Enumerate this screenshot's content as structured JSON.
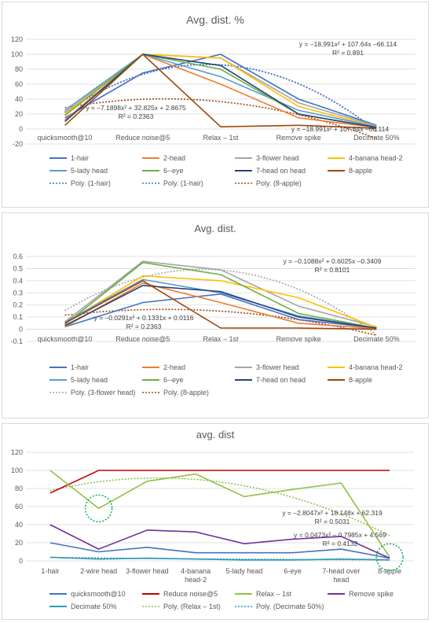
{
  "chart_data": [
    {
      "type": "line",
      "title": "Avg. dist. %",
      "categories": [
        "quicksmooth@10",
        "Reduce noise@5",
        "Relax – 1st",
        "Remove spike",
        "Decimate 50%"
      ],
      "ylim": [
        -20,
        120
      ],
      "yticks": [
        "-20",
        "0",
        "20",
        "40",
        "60",
        "80",
        "100",
        "120"
      ],
      "grid": true,
      "legend_position": "bottom",
      "series": [
        {
          "name": "1-hair",
          "color": "#4472c4",
          "values": [
            15,
            75,
            100,
            40,
            5
          ]
        },
        {
          "name": "2-head",
          "color": "#ed7d31",
          "values": [
            12,
            100,
            60,
            15,
            2
          ]
        },
        {
          "name": "3-flower head",
          "color": "#a5a5a5",
          "values": [
            22,
            100,
            95,
            35,
            4
          ]
        },
        {
          "name": "4-banana head-2",
          "color": "#ffc000",
          "values": [
            20,
            100,
            95,
            30,
            3
          ]
        },
        {
          "name": "5-lady head",
          "color": "#5b9bd5",
          "values": [
            25,
            100,
            70,
            25,
            3
          ]
        },
        {
          "name": "6--eye",
          "color": "#70ad47",
          "values": [
            18,
            100,
            80,
            20,
            2
          ]
        },
        {
          "name": "7-head on head",
          "color": "#264478",
          "values": [
            10,
            100,
            85,
            20,
            2
          ]
        },
        {
          "name": "8-apple",
          "color": "#9e480e",
          "values": [
            5,
            100,
            3,
            5,
            1
          ]
        }
      ],
      "trendlines": [
        {
          "name": "Poly. (1-hair)",
          "color": "#4472c4",
          "coef": [
            -18.991,
            107.64,
            -66.114
          ]
        },
        {
          "name": "Poly. (1-hair)",
          "color": "#4472c4",
          "coef": [
            -18.991,
            107.64,
            -66.114
          ]
        },
        {
          "name": "Poly. (8-apple)",
          "color": "#9e480e",
          "coef": [
            -7.1898,
            32.825,
            2.8675
          ]
        }
      ],
      "annotations": [
        {
          "equation": "y = –18.991x² + 107.64x –66.114",
          "r2": "R² = 0.891"
        },
        {
          "equation": "y = –7.1898x² + 32.825x + 2.8675",
          "r2": "R² = 0.2363"
        },
        {
          "equation": "y = –18.991x² + 107.64x –66.114",
          "r2": ""
        }
      ]
    },
    {
      "type": "line",
      "title": "Avg. dist.",
      "categories": [
        "quicksmooth@10",
        "Reduce noise@5",
        "Relax – 1st",
        "Remove spike",
        "Decimate 50%"
      ],
      "ylim": [
        -0.1,
        0.6
      ],
      "yticks": [
        "-0.1",
        "0",
        "0.1",
        "0.2",
        "0.3",
        "0.4",
        "0.5",
        "0.6"
      ],
      "grid": true,
      "legend_position": "bottom",
      "series": [
        {
          "name": "1-hair",
          "color": "#4472c4",
          "values": [
            0.02,
            0.22,
            0.29,
            0.08,
            0.01
          ]
        },
        {
          "name": "2-head",
          "color": "#ed7d31",
          "values": [
            0.02,
            0.38,
            0.22,
            0.05,
            0.005
          ]
        },
        {
          "name": "3-flower head",
          "color": "#a5a5a5",
          "values": [
            0.06,
            0.56,
            0.49,
            0.19,
            0.02
          ]
        },
        {
          "name": "4-banana head-2",
          "color": "#ffc000",
          "values": [
            0.05,
            0.44,
            0.4,
            0.26,
            0.015
          ]
        },
        {
          "name": "5-lady head",
          "color": "#5b9bd5",
          "values": [
            0.06,
            0.41,
            0.3,
            0.11,
            0.01
          ]
        },
        {
          "name": "6--eye",
          "color": "#70ad47",
          "values": [
            0.04,
            0.55,
            0.45,
            0.13,
            0.01
          ]
        },
        {
          "name": "7-head on head",
          "color": "#264478",
          "values": [
            0.03,
            0.36,
            0.31,
            0.1,
            0.01
          ]
        },
        {
          "name": "8-apple",
          "color": "#9e480e",
          "values": [
            0.05,
            0.4,
            0.01,
            0.01,
            0.0
          ]
        }
      ],
      "trendlines": [
        {
          "name": "Poly. (3-flower head)",
          "color": "#a5a5a5",
          "coef": [
            -0.1088,
            0.6025,
            -0.3409
          ]
        },
        {
          "name": "Poly. (8-apple)",
          "color": "#9e480e",
          "coef": [
            -0.0291,
            0.1331,
            0.0116
          ]
        }
      ],
      "annotations": [
        {
          "equation": "y = –0.1088x² + 0.6025x –0.3409",
          "r2": "R² = 0.8101"
        },
        {
          "equation": "y = –0.0291x² + 0.1331x + 0.0116",
          "r2": "R² = 0.2363"
        }
      ]
    },
    {
      "type": "line",
      "title": "avg. dist",
      "categories": [
        "1-hair",
        "2-wire head",
        "3-flower head",
        "4-banana head-2",
        "5-lady head",
        "6-eye",
        "7-head over head",
        "8-apple"
      ],
      "ylim": [
        0,
        120
      ],
      "yticks": [
        "0",
        "20",
        "40",
        "60",
        "80",
        "100",
        "120"
      ],
      "grid": true,
      "legend_position": "bottom",
      "series": [
        {
          "name": "quicksmooth@10",
          "color": "#4472c4",
          "values": [
            20,
            10,
            15,
            9,
            9,
            9,
            13,
            3
          ]
        },
        {
          "name": "Reduce noise@5",
          "color": "#c00000",
          "values": [
            75,
            100,
            100,
            100,
            100,
            100,
            100,
            100
          ]
        },
        {
          "name": "Relax – 1st",
          "color": "#92c047",
          "values": [
            100,
            58,
            88,
            96,
            71,
            79,
            86,
            4
          ]
        },
        {
          "name": "Remove spike",
          "color": "#7030a0",
          "values": [
            40,
            13,
            34,
            32,
            19,
            24,
            27,
            3
          ]
        },
        {
          "name": "Decimate 50%",
          "color": "#2e9bb3",
          "values": [
            4,
            2,
            3,
            2,
            1,
            1,
            2,
            1
          ]
        }
      ],
      "trendlines": [
        {
          "name": "Poly. (Relax – 1st)",
          "color": "#92c047",
          "coef": [
            -2.8047,
            18.148,
            62.319
          ]
        },
        {
          "name": "Poly. (Decimate 50%)",
          "color": "#2e9bb3",
          "coef": [
            0.0473,
            -0.7985,
            4.569
          ]
        }
      ],
      "annotations": [
        {
          "equation": "y = –2.8047x² + 18.148x + 62.319",
          "r2": "R² = 0.5031"
        },
        {
          "equation": "y = 0.0473x² – 0.7985x + 4.569",
          "r2": "R² = 0.4132"
        }
      ],
      "highlight_circles": [
        {
          "category": "2-wire head",
          "value": 58
        },
        {
          "category": "8-apple",
          "value": 4
        }
      ]
    }
  ]
}
